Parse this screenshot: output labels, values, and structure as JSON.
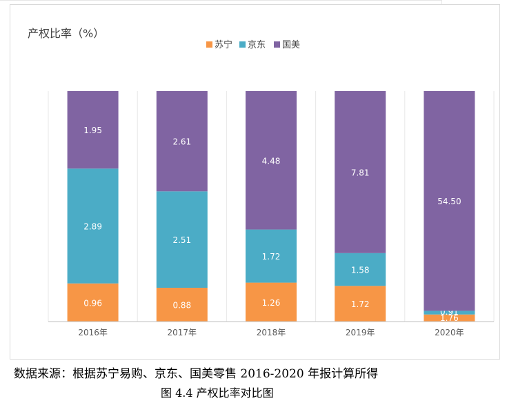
{
  "chart_data": {
    "type": "bar",
    "stacked": true,
    "title": "产权比率（%）",
    "categories": [
      "2016年",
      "2017年",
      "2018年",
      "2019年",
      "2020年"
    ],
    "series": [
      {
        "name": "苏宁",
        "color": "#F79646",
        "values": [
          0.96,
          0.88,
          1.26,
          1.72,
          1.76
        ]
      },
      {
        "name": "京东",
        "color": "#4BACC6",
        "values": [
          2.89,
          2.51,
          1.72,
          1.58,
          0.91
        ]
      },
      {
        "name": "国美",
        "color": "#8064A2",
        "values": [
          1.95,
          2.61,
          4.48,
          7.81,
          54.5
        ]
      }
    ],
    "data_label_format": "0.00",
    "normalized_display": true,
    "legend_position": "top",
    "grid": true,
    "category_band_separators": true
  },
  "caption": "数据来源：根据苏宁易购、京东、国美零售 2016-2020 年报计算所得",
  "figure_title": "图 4.4 产权比率对比图"
}
